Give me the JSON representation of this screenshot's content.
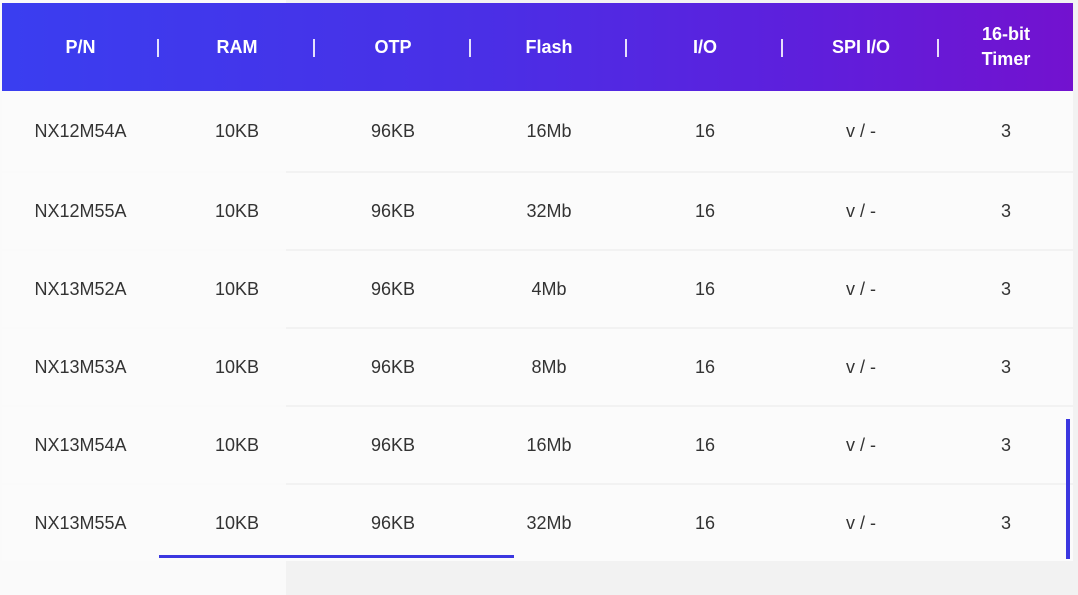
{
  "colors": {
    "header_gradient_start": "#3a3ef0",
    "header_gradient_end": "#7312cf",
    "accent": "#3b37e0",
    "row_background": "#fbfbfb",
    "text": "#333333"
  },
  "table": {
    "columns": [
      "P/N",
      "RAM",
      "OTP",
      "Flash",
      "I/O",
      "SPI I/O",
      "16-bit\nTimer"
    ],
    "rows": [
      [
        "NX12M54A",
        "10KB",
        "96KB",
        "16Mb",
        "16",
        "v / -",
        "3"
      ],
      [
        "NX12M55A",
        "10KB",
        "96KB",
        "32Mb",
        "16",
        "v / -",
        "3"
      ],
      [
        "NX13M52A",
        "10KB",
        "96KB",
        "4Mb",
        "16",
        "v / -",
        "3"
      ],
      [
        "NX13M53A",
        "10KB",
        "96KB",
        "8Mb",
        "16",
        "v / -",
        "3"
      ],
      [
        "NX13M54A",
        "10KB",
        "96KB",
        "16Mb",
        "16",
        "v / -",
        "3"
      ],
      [
        "NX13M55A",
        "10KB",
        "96KB",
        "32Mb",
        "16",
        "v / -",
        "3"
      ]
    ]
  }
}
